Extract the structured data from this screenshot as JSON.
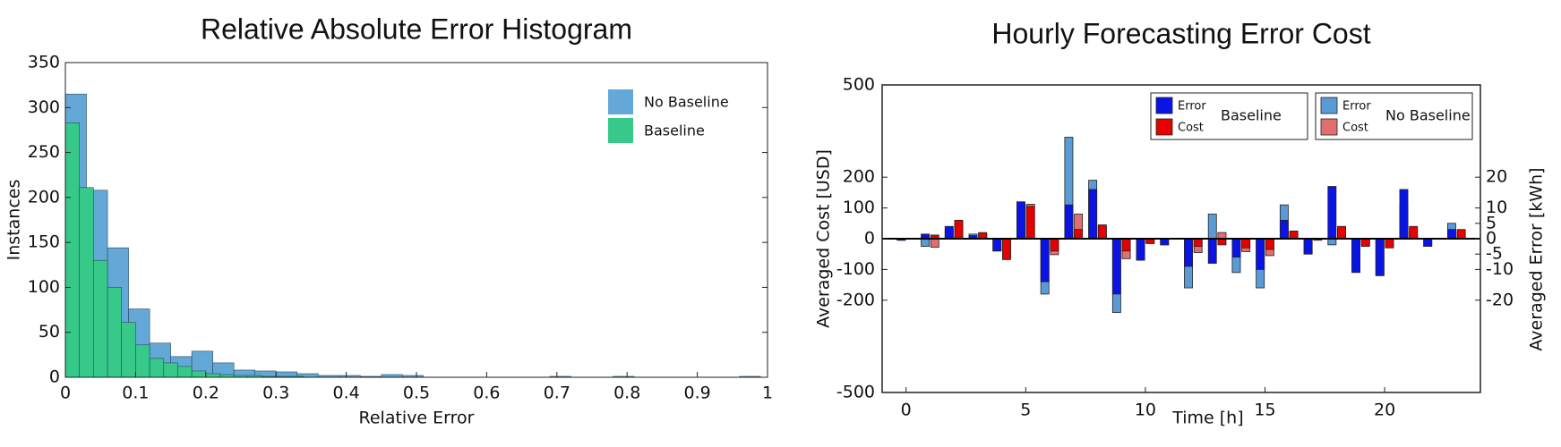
{
  "chart_data": [
    {
      "type": "histogram",
      "title": "Relative Absolute Error Histogram",
      "x_label": "Relative Error",
      "y_label": "Instances",
      "xlim": [
        0,
        1
      ],
      "ylim": [
        0,
        350
      ],
      "xticks": [
        0,
        0.1,
        0.2,
        0.3,
        0.4,
        0.5,
        0.6,
        0.7,
        0.8,
        0.9,
        1
      ],
      "yticks": [
        0,
        50,
        100,
        150,
        200,
        250,
        300,
        350
      ],
      "legend": "upper right",
      "series": [
        {
          "name": "No Baseline",
          "color": "#64a8d8",
          "bins": [
            0,
            0.03,
            0.06,
            0.09,
            0.12,
            0.15,
            0.18,
            0.21,
            0.24,
            0.27,
            0.3,
            0.33,
            0.36,
            0.39,
            0.42,
            0.45,
            0.48,
            0.51,
            0.54,
            0.57,
            0.6,
            0.63,
            0.66,
            0.69,
            0.72,
            0.75,
            0.78,
            0.81,
            0.84,
            0.87,
            0.9,
            0.93,
            0.96,
            0.99
          ],
          "values": [
            315,
            208,
            144,
            76,
            38,
            23,
            29,
            16,
            8,
            7,
            6,
            4,
            2,
            2,
            1,
            3,
            2,
            0,
            0,
            0,
            0,
            0,
            0,
            1,
            0,
            0,
            1,
            0,
            0,
            0,
            0,
            0,
            1
          ]
        },
        {
          "name": "Baseline",
          "color": "#36c98a",
          "bins": [
            0,
            0.02,
            0.04,
            0.06,
            0.08,
            0.1,
            0.12,
            0.14,
            0.16,
            0.18,
            0.2,
            0.22,
            0.24,
            0.26,
            0.28,
            0.3,
            0.32,
            0.34
          ],
          "values": [
            283,
            211,
            130,
            100,
            61,
            36,
            21,
            16,
            12,
            7,
            4,
            3,
            2,
            2,
            1,
            1,
            1
          ]
        }
      ]
    },
    {
      "type": "bar",
      "title": "Hourly Forecasting Error Cost",
      "x_label": "Time [h]",
      "y_label": "Averaged Cost [USD]",
      "y2_label": "Averaged Error [kWh]",
      "x": [
        0,
        1,
        2,
        3,
        4,
        5,
        6,
        7,
        8,
        9,
        10,
        11,
        12,
        13,
        14,
        15,
        16,
        17,
        18,
        19,
        20,
        21,
        22,
        23
      ],
      "xlim": [
        -1,
        24
      ],
      "xticks": [
        0,
        5,
        10,
        15,
        20
      ],
      "ylim": [
        -500,
        500
      ],
      "yticks": [
        -500,
        -200,
        -100,
        0,
        100,
        200,
        500
      ],
      "y2lim": [
        -50,
        50
      ],
      "y2ticks": [
        -20,
        -10,
        -5,
        0,
        5,
        10,
        20
      ],
      "series": [
        {
          "name": "Error",
          "group": "Baseline",
          "color": "#0a14e6",
          "axis": "y2",
          "values": [
            -0.5,
            1.5,
            4,
            1,
            -4,
            12,
            -14,
            11,
            16,
            -18,
            -7,
            -2,
            -9,
            -8,
            -6,
            -10,
            6,
            -5,
            17,
            -11,
            -12,
            16,
            -2.5,
            3
          ]
        },
        {
          "name": "Cost",
          "group": "Baseline",
          "color": "#e60000",
          "values": [
            0,
            12,
            60,
            20,
            -68,
            105,
            -40,
            30,
            45,
            -40,
            -16,
            0,
            -25,
            -20,
            -30,
            -35,
            25,
            -5,
            40,
            -25,
            -30,
            40,
            0,
            30
          ]
        },
        {
          "name": "Error",
          "group": "No Baseline",
          "color": "#5b9bd5",
          "axis": "y2",
          "values": [
            -0.5,
            -2.5,
            3,
            1.5,
            -4,
            11,
            -18,
            33,
            19,
            -24,
            -7,
            -2,
            -16,
            8,
            -11,
            -16,
            11,
            -5,
            -2,
            -10,
            -12,
            11,
            -2.5,
            5
          ]
        },
        {
          "name": "Cost",
          "group": "No Baseline",
          "color": "#e07070",
          "values": [
            0,
            -28,
            50,
            18,
            -60,
            112,
            -52,
            80,
            40,
            -65,
            -12,
            0,
            -45,
            20,
            -42,
            -55,
            20,
            -3,
            30,
            -20,
            -25,
            25,
            0,
            22
          ]
        }
      ]
    }
  ]
}
